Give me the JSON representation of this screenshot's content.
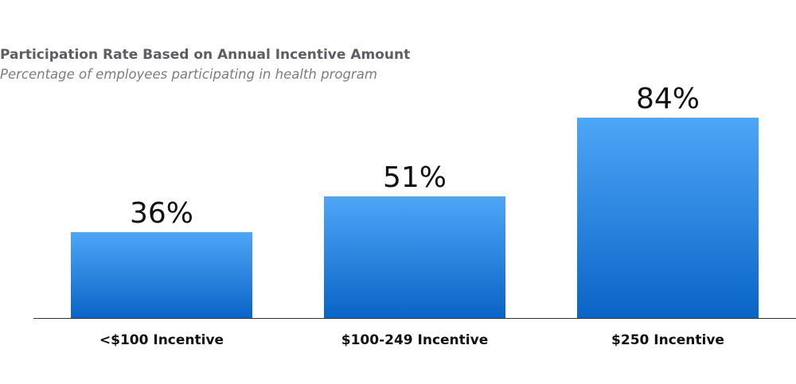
{
  "chart_data": {
    "type": "bar",
    "title": "Participation Rate Based on Annual Incentive Amount",
    "subtitle": "Percentage of employees participating in health program",
    "categories": [
      "<$100 Incentive",
      "$100-249 Incentive",
      "$250 Incentive"
    ],
    "values": [
      36,
      51,
      84
    ],
    "value_labels": [
      "36%",
      "51%",
      "84%"
    ],
    "xlabel": "",
    "ylabel": "",
    "ylim": [
      0,
      100
    ],
    "grid": false,
    "legend": "none",
    "colors": {
      "bar_top": "#4ea6f7",
      "bar_bottom": "#0a64c6",
      "axis": "#333333"
    }
  }
}
